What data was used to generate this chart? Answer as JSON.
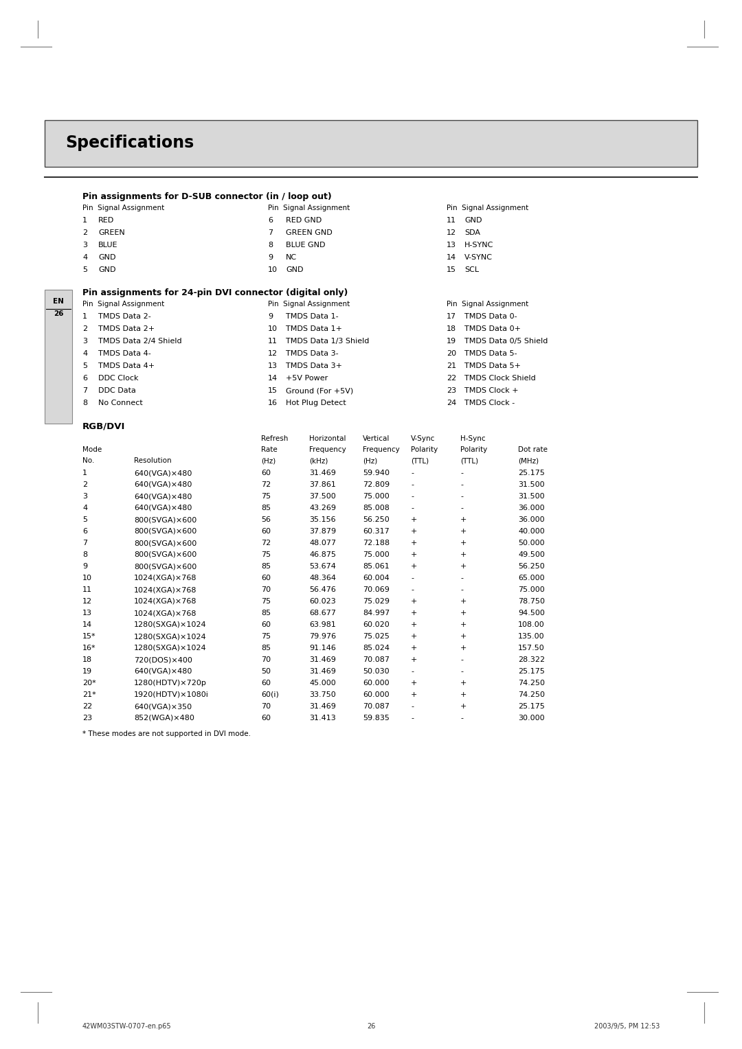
{
  "bg_color": "#ffffff",
  "title_box_color": "#d8d8d8",
  "title_text": "Specifications",
  "title_fontsize": 17,
  "body_fontsize": 8.0,
  "small_fontsize": 7.5,
  "dsub_heading": "Pin assignments for D-SUB connector (in / loop out)",
  "dsub_data": [
    [
      "1",
      "RED",
      "6",
      "RED GND",
      "11",
      "GND"
    ],
    [
      "2",
      "GREEN",
      "7",
      "GREEN GND",
      "12",
      "SDA"
    ],
    [
      "3",
      "BLUE",
      "8",
      "BLUE GND",
      "13",
      "H-SYNC"
    ],
    [
      "4",
      "GND",
      "9",
      "NC",
      "14",
      "V-SYNC"
    ],
    [
      "5",
      "GND",
      "10",
      "GND",
      "15",
      "SCL"
    ]
  ],
  "dvi_heading": "Pin assignments for 24-pin DVI connector (digital only)",
  "dvi_data": [
    [
      "1",
      "TMDS Data 2-",
      "9",
      "TMDS Data 1-",
      "17",
      "TMDS Data 0-"
    ],
    [
      "2",
      "TMDS Data 2+",
      "10",
      "TMDS Data 1+",
      "18",
      "TMDS Data 0+"
    ],
    [
      "3",
      "TMDS Data 2/4 Shield",
      "11",
      "TMDS Data 1/3 Shield",
      "19",
      "TMDS Data 0/5 Shield"
    ],
    [
      "4",
      "TMDS Data 4-",
      "12",
      "TMDS Data 3-",
      "20",
      "TMDS Data 5-"
    ],
    [
      "5",
      "TMDS Data 4+",
      "13",
      "TMDS Data 3+",
      "21",
      "TMDS Data 5+"
    ],
    [
      "6",
      "DDC Clock",
      "14",
      "+5V Power",
      "22",
      "TMDS Clock Shield"
    ],
    [
      "7",
      "DDC Data",
      "15",
      "Ground (For +5V)",
      "23",
      "TMDS Clock +"
    ],
    [
      "8",
      "No Connect",
      "16",
      "Hot Plug Detect",
      "24",
      "TMDS Clock -"
    ]
  ],
  "rgb_heading": "RGB/DVI",
  "rgb_data": [
    [
      "1",
      "640(VGA)×480",
      "60",
      "31.469",
      "59.940",
      "-",
      "-",
      "25.175"
    ],
    [
      "2",
      "640(VGA)×480",
      "72",
      "37.861",
      "72.809",
      "-",
      "-",
      "31.500"
    ],
    [
      "3",
      "640(VGA)×480",
      "75",
      "37.500",
      "75.000",
      "-",
      "-",
      "31.500"
    ],
    [
      "4",
      "640(VGA)×480",
      "85",
      "43.269",
      "85.008",
      "-",
      "-",
      "36.000"
    ],
    [
      "5",
      "800(SVGA)×600",
      "56",
      "35.156",
      "56.250",
      "+",
      "+",
      "36.000"
    ],
    [
      "6",
      "800(SVGA)×600",
      "60",
      "37.879",
      "60.317",
      "+",
      "+",
      "40.000"
    ],
    [
      "7",
      "800(SVGA)×600",
      "72",
      "48.077",
      "72.188",
      "+",
      "+",
      "50.000"
    ],
    [
      "8",
      "800(SVGA)×600",
      "75",
      "46.875",
      "75.000",
      "+",
      "+",
      "49.500"
    ],
    [
      "9",
      "800(SVGA)×600",
      "85",
      "53.674",
      "85.061",
      "+",
      "+",
      "56.250"
    ],
    [
      "10",
      "1024(XGA)×768",
      "60",
      "48.364",
      "60.004",
      "-",
      "-",
      "65.000"
    ],
    [
      "11",
      "1024(XGA)×768",
      "70",
      "56.476",
      "70.069",
      "-",
      "-",
      "75.000"
    ],
    [
      "12",
      "1024(XGA)×768",
      "75",
      "60.023",
      "75.029",
      "+",
      "+",
      "78.750"
    ],
    [
      "13",
      "1024(XGA)×768",
      "85",
      "68.677",
      "84.997",
      "+",
      "+",
      "94.500"
    ],
    [
      "14",
      "1280(SXGA)×1024",
      "60",
      "63.981",
      "60.020",
      "+",
      "+",
      "108.00"
    ],
    [
      "15*",
      "1280(SXGA)×1024",
      "75",
      "79.976",
      "75.025",
      "+",
      "+",
      "135.00"
    ],
    [
      "16*",
      "1280(SXGA)×1024",
      "85",
      "91.146",
      "85.024",
      "+",
      "+",
      "157.50"
    ],
    [
      "18",
      "720(DOS)×400",
      "70",
      "31.469",
      "70.087",
      "+",
      "-",
      "28.322"
    ],
    [
      "19",
      "640(VGA)×480",
      "50",
      "31.469",
      "50.030",
      "-",
      "-",
      "25.175"
    ],
    [
      "20*",
      "1280(HDTV)×720p",
      "60",
      "45.000",
      "60.000",
      "+",
      "+",
      "74.250"
    ],
    [
      "21*",
      "1920(HDTV)×1080i",
      "60(i)",
      "33.750",
      "60.000",
      "+",
      "+",
      "74.250"
    ],
    [
      "22",
      "640(VGA)×350",
      "70",
      "31.469",
      "70.087",
      "-",
      "+",
      "25.175"
    ],
    [
      "23",
      "852(WGA)×480",
      "60",
      "31.413",
      "59.835",
      "-",
      "-",
      "30.000"
    ]
  ],
  "footnote": "* These modes are not supported in DVI mode.",
  "footer_left": "42WM03STW-0707-en.p65",
  "footer_center": "26",
  "footer_right": "2003/9/5, PM 12:53"
}
